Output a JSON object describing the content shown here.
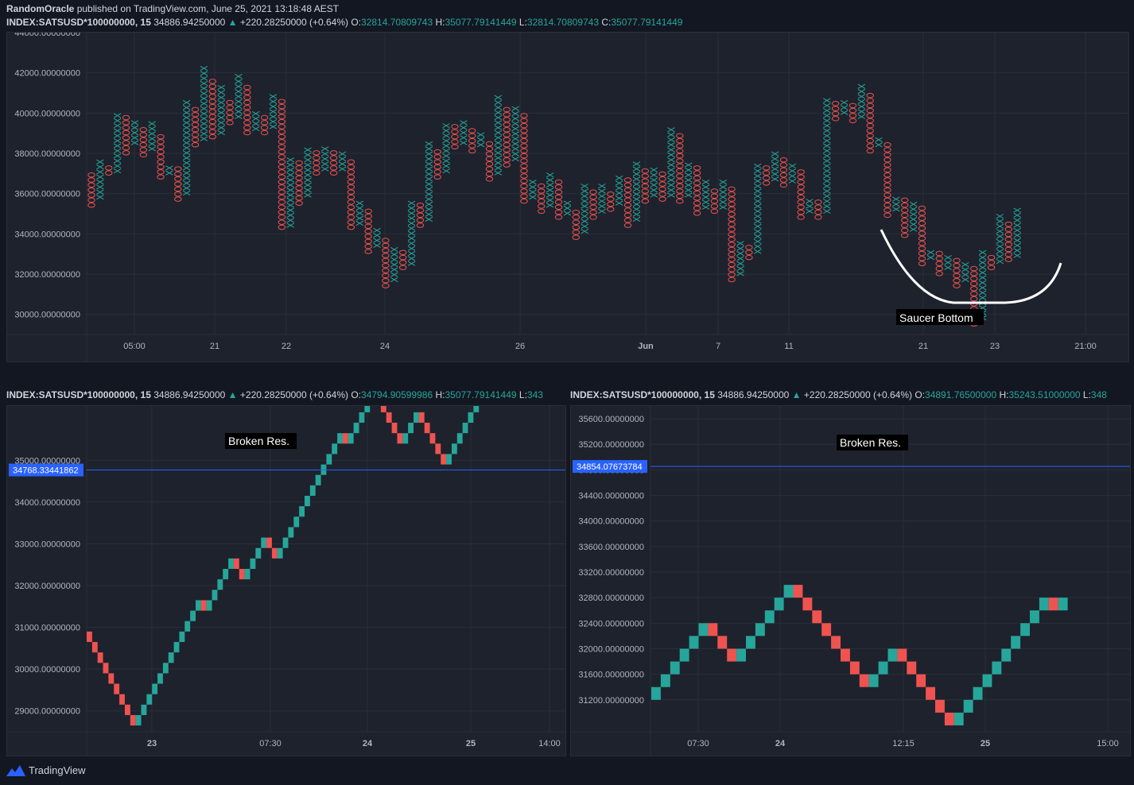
{
  "header": {
    "author": "RandomOracle",
    "published": "published on TradingView.com, June 25, 2021 13:18:48 AEST"
  },
  "top_info": {
    "symbol": "INDEX:SATSUSD*100000000, 15",
    "last": "34886.94250000",
    "change": "+220.28250000 (+0.64%)",
    "o_label": "O:",
    "o": "32814.70809743",
    "h_label": "H:",
    "h": "35077.79141449",
    "l_label": "L:",
    "l": "32814.70809743",
    "c_label": "C:",
    "c": "35077.79141449"
  },
  "left_info": {
    "symbol": "INDEX:SATSUSD*100000000, 15",
    "last": "34886.94250000",
    "change": "+220.28250000 (+0.64%)",
    "o_label": "O:",
    "o": "34794.90599986",
    "h_label": "H:",
    "h": "35077.79141449",
    "l_label": "L:",
    "l": "343"
  },
  "right_info": {
    "symbol": "INDEX:SATSUSD*100000000, 15",
    "last": "34886.94250000",
    "change": "+220.28250000 (+0.64%)",
    "o_label": "O:",
    "o": "34891.76500000",
    "h_label": "H:",
    "h": "35243.51000000",
    "l_label": "L:",
    "l": "348"
  },
  "colors": {
    "up": "#26a69a",
    "down": "#ef5350",
    "line": "#2962ff",
    "bg": "#1e222d",
    "grid": "#2a2e39"
  },
  "brand": {
    "name": "TradingView",
    "icon": "tradingview-logo-icon"
  },
  "chart_data": [
    {
      "type": "point-and-figure",
      "ylim": [
        29000,
        44000
      ],
      "yticks": [
        "44000.00000000",
        "42000.00000000",
        "40000.00000000",
        "38000.00000000",
        "36000.00000000",
        "34000.00000000",
        "32000.00000000",
        "30000.00000000"
      ],
      "ytick_values": [
        44000,
        42000,
        40000,
        38000,
        36000,
        34000,
        32000,
        30000
      ],
      "xticks": [
        "05:00",
        "21",
        "22",
        "24",
        "26",
        "Jun",
        "7",
        "11",
        "21",
        "23",
        "21:00"
      ],
      "columns": [
        {
          "t": "O",
          "lo": 35300,
          "hi": 37100
        },
        {
          "t": "X",
          "lo": 35700,
          "hi": 37600
        },
        {
          "t": "O",
          "lo": 36900,
          "hi": 37300
        },
        {
          "t": "X",
          "lo": 37000,
          "hi": 40100
        },
        {
          "t": "O",
          "lo": 37900,
          "hi": 39900
        },
        {
          "t": "X",
          "lo": 38400,
          "hi": 39600
        },
        {
          "t": "O",
          "lo": 37800,
          "hi": 39300
        },
        {
          "t": "X",
          "lo": 38100,
          "hi": 39600
        },
        {
          "t": "O",
          "lo": 36700,
          "hi": 39000
        },
        {
          "t": "X",
          "lo": 36900,
          "hi": 37500
        },
        {
          "t": "O",
          "lo": 35600,
          "hi": 37300
        },
        {
          "t": "X",
          "lo": 35900,
          "hi": 40700
        },
        {
          "t": "O",
          "lo": 38300,
          "hi": 40300
        },
        {
          "t": "X",
          "lo": 38600,
          "hi": 42400
        },
        {
          "t": "O",
          "lo": 38700,
          "hi": 41800
        },
        {
          "t": "X",
          "lo": 38900,
          "hi": 41300
        },
        {
          "t": "O",
          "lo": 39400,
          "hi": 40600
        },
        {
          "t": "X",
          "lo": 39700,
          "hi": 41900
        },
        {
          "t": "O",
          "lo": 38900,
          "hi": 41500
        },
        {
          "t": "X",
          "lo": 39100,
          "hi": 40100
        },
        {
          "t": "O",
          "lo": 38900,
          "hi": 39800
        },
        {
          "t": "X",
          "lo": 39200,
          "hi": 41000
        },
        {
          "t": "O",
          "lo": 34200,
          "hi": 40700
        },
        {
          "t": "X",
          "lo": 34300,
          "hi": 37900
        },
        {
          "t": "O",
          "lo": 35400,
          "hi": 37600
        },
        {
          "t": "X",
          "lo": 35800,
          "hi": 38400
        },
        {
          "t": "O",
          "lo": 36900,
          "hi": 38100
        },
        {
          "t": "X",
          "lo": 37100,
          "hi": 38300
        },
        {
          "t": "O",
          "lo": 36900,
          "hi": 38100
        },
        {
          "t": "X",
          "lo": 37100,
          "hi": 38000
        },
        {
          "t": "O",
          "lo": 34200,
          "hi": 37800
        },
        {
          "t": "X",
          "lo": 34400,
          "hi": 35600
        },
        {
          "t": "O",
          "lo": 33000,
          "hi": 35300
        },
        {
          "t": "X",
          "lo": 33300,
          "hi": 34300
        },
        {
          "t": "O",
          "lo": 31300,
          "hi": 33800
        },
        {
          "t": "X",
          "lo": 31600,
          "hi": 33400
        },
        {
          "t": "O",
          "lo": 32200,
          "hi": 33100
        },
        {
          "t": "X",
          "lo": 32400,
          "hi": 35700
        },
        {
          "t": "O",
          "lo": 34300,
          "hi": 35500
        },
        {
          "t": "X",
          "lo": 34600,
          "hi": 38500
        },
        {
          "t": "O",
          "lo": 36700,
          "hi": 38100
        },
        {
          "t": "X",
          "lo": 37000,
          "hi": 39600
        },
        {
          "t": "O",
          "lo": 38200,
          "hi": 39400
        },
        {
          "t": "X",
          "lo": 38400,
          "hi": 39600
        },
        {
          "t": "O",
          "lo": 38000,
          "hi": 39300
        },
        {
          "t": "X",
          "lo": 38300,
          "hi": 39000
        },
        {
          "t": "O",
          "lo": 36600,
          "hi": 38700
        },
        {
          "t": "X",
          "lo": 36900,
          "hi": 40800
        },
        {
          "t": "O",
          "lo": 37300,
          "hi": 40400
        },
        {
          "t": "X",
          "lo": 37600,
          "hi": 40300
        },
        {
          "t": "O",
          "lo": 35500,
          "hi": 40000
        },
        {
          "t": "X",
          "lo": 35700,
          "hi": 36600
        },
        {
          "t": "O",
          "lo": 35000,
          "hi": 36400
        },
        {
          "t": "X",
          "lo": 35300,
          "hi": 37000
        },
        {
          "t": "O",
          "lo": 34700,
          "hi": 36800
        },
        {
          "t": "X",
          "lo": 34900,
          "hi": 35600
        },
        {
          "t": "O",
          "lo": 33700,
          "hi": 35300
        },
        {
          "t": "X",
          "lo": 34000,
          "hi": 36400
        },
        {
          "t": "O",
          "lo": 34700,
          "hi": 36100
        },
        {
          "t": "X",
          "lo": 35000,
          "hi": 36400
        },
        {
          "t": "O",
          "lo": 35100,
          "hi": 36100
        },
        {
          "t": "X",
          "lo": 35400,
          "hi": 37000
        },
        {
          "t": "O",
          "lo": 34300,
          "hi": 36700
        },
        {
          "t": "X",
          "lo": 34600,
          "hi": 37600
        },
        {
          "t": "O",
          "lo": 35500,
          "hi": 37300
        },
        {
          "t": "X",
          "lo": 35800,
          "hi": 37300
        },
        {
          "t": "O",
          "lo": 35600,
          "hi": 37100
        },
        {
          "t": "X",
          "lo": 35800,
          "hi": 39400
        },
        {
          "t": "O",
          "lo": 35500,
          "hi": 39100
        },
        {
          "t": "X",
          "lo": 35800,
          "hi": 37600
        },
        {
          "t": "O",
          "lo": 34900,
          "hi": 37300
        },
        {
          "t": "X",
          "lo": 35200,
          "hi": 36600
        },
        {
          "t": "O",
          "lo": 35000,
          "hi": 36300
        },
        {
          "t": "X",
          "lo": 35200,
          "hi": 36600
        },
        {
          "t": "O",
          "lo": 31600,
          "hi": 36300
        },
        {
          "t": "X",
          "lo": 31900,
          "hi": 33600
        },
        {
          "t": "O",
          "lo": 32700,
          "hi": 33400
        },
        {
          "t": "X",
          "lo": 33000,
          "hi": 37600
        },
        {
          "t": "O",
          "lo": 36400,
          "hi": 37300
        },
        {
          "t": "X",
          "lo": 36600,
          "hi": 38000
        },
        {
          "t": "O",
          "lo": 36300,
          "hi": 37800
        },
        {
          "t": "X",
          "lo": 36500,
          "hi": 37600
        },
        {
          "t": "O",
          "lo": 34700,
          "hi": 37300
        },
        {
          "t": "X",
          "lo": 35000,
          "hi": 35800
        },
        {
          "t": "O",
          "lo": 34700,
          "hi": 35600
        },
        {
          "t": "X",
          "lo": 35000,
          "hi": 40800
        },
        {
          "t": "O",
          "lo": 39600,
          "hi": 40600
        },
        {
          "t": "X",
          "lo": 39900,
          "hi": 40600
        },
        {
          "t": "O",
          "lo": 39500,
          "hi": 40400
        },
        {
          "t": "X",
          "lo": 39700,
          "hi": 41400
        },
        {
          "t": "O",
          "lo": 38000,
          "hi": 41100
        },
        {
          "t": "X",
          "lo": 38300,
          "hi": 38800
        },
        {
          "t": "O",
          "lo": 34800,
          "hi": 38600
        },
        {
          "t": "X",
          "lo": 35100,
          "hi": 35900
        },
        {
          "t": "O",
          "lo": 33800,
          "hi": 35700
        },
        {
          "t": "X",
          "lo": 34100,
          "hi": 35600
        },
        {
          "t": "O",
          "lo": 32400,
          "hi": 35300
        },
        {
          "t": "X",
          "lo": 32700,
          "hi": 33300
        },
        {
          "t": "O",
          "lo": 31900,
          "hi": 33100
        },
        {
          "t": "X",
          "lo": 32200,
          "hi": 33000
        },
        {
          "t": "O",
          "lo": 31300,
          "hi": 32800
        },
        {
          "t": "X",
          "lo": 31600,
          "hi": 32600
        },
        {
          "t": "O",
          "lo": 29400,
          "hi": 32300
        },
        {
          "t": "X",
          "lo": 29700,
          "hi": 33300
        },
        {
          "t": "O",
          "lo": 32200,
          "hi": 33000
        },
        {
          "t": "X",
          "lo": 32500,
          "hi": 34900
        },
        {
          "t": "O",
          "lo": 32600,
          "hi": 34600
        },
        {
          "t": "X",
          "lo": 32800,
          "hi": 35200
        }
      ],
      "annotation": "Saucer Bottom"
    },
    {
      "type": "renko",
      "ylim": [
        28500,
        36300
      ],
      "yticks": [
        "35000.00000000",
        "34000.00000000",
        "33000.00000000",
        "32000.00000000",
        "31000.00000000",
        "30000.00000000",
        "29000.00000000"
      ],
      "ytick_values": [
        35000,
        34000,
        33000,
        32000,
        31000,
        30000,
        29000
      ],
      "xticks": [
        "23",
        "07:30",
        "24",
        "25",
        "14:00"
      ],
      "box": 250,
      "start": 30900,
      "sequence": "DDDDDDDDDUUUUUUUUUUUUDUUUUUDDUUUUDDUUUUUUUUUUUUDUUUUUDDDDDUUUDDDDDUUUUUUUUUDDDUU",
      "price_line": "34768.33441862",
      "price_line_value": 34768.33,
      "annotation": "Broken Res."
    },
    {
      "type": "renko",
      "ylim": [
        30700,
        35800
      ],
      "yticks": [
        "35600.00000000",
        "35200.00000000",
        "34800.00000000",
        "34400.00000000",
        "34000.00000000",
        "33600.00000000",
        "33200.00000000",
        "32800.00000000",
        "32400.00000000",
        "32000.00000000",
        "31600.00000000",
        "31200.00000000"
      ],
      "ytick_values": [
        35600,
        35200,
        34800,
        34400,
        34000,
        33600,
        33200,
        32800,
        32400,
        32000,
        31600,
        31200
      ],
      "xticks": [
        "07:30",
        "24",
        "12:15",
        "25",
        "15:00"
      ],
      "box": 200,
      "start": 31200,
      "sequence": "UUUUUUDDDUUUUUUDDDDDDDDUUUDDDDDDUUUUUUUUUUDU",
      "price_line": "34854.07673784",
      "price_line_value": 34854.08,
      "annotation": "Broken Res."
    }
  ]
}
